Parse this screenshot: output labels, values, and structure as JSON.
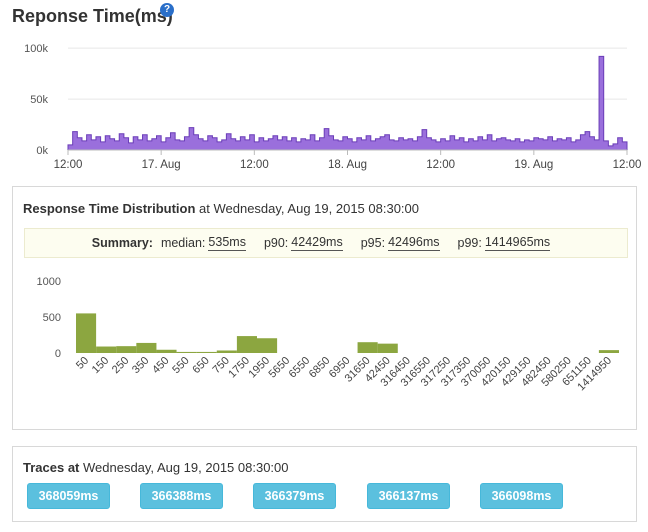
{
  "header": {
    "title": "Reponse Time(ms)",
    "help_icon": "question-circle-icon"
  },
  "colors": {
    "response_area": "#9a6fdc",
    "response_line": "#6a3db8",
    "histogram": "#8ca640",
    "trace_button": "#5bc0de"
  },
  "chart_data": [
    {
      "type": "area",
      "title": "",
      "y_ticks": [
        "100k",
        "50k",
        "0k"
      ],
      "x_ticks": [
        "12:00",
        "17. Aug",
        "12:00",
        "18. Aug",
        "12:00",
        "19. Aug",
        "12:00"
      ],
      "ylim": [
        0,
        110000
      ],
      "x_domain": [
        0,
        72
      ],
      "grid": "horizontal",
      "series": [
        {
          "values": [
            5000,
            18000,
            12000,
            9000,
            15000,
            10000,
            13000,
            8000,
            14000,
            11000,
            9000,
            16000,
            12000,
            7000,
            13000,
            10000,
            15000,
            9000,
            11000,
            14000,
            8000,
            12000,
            17000,
            10000,
            9000,
            13000,
            22000,
            15000,
            11000,
            9000,
            14000,
            12000,
            8000,
            10000,
            16000,
            11000,
            9000,
            13000,
            10000,
            15000,
            8000,
            12000,
            9000,
            11000,
            14000,
            10000,
            13000,
            9000,
            12000,
            8000,
            11000,
            10000,
            15000,
            9000,
            12000,
            21000,
            14000,
            10000,
            9000,
            13000,
            11000,
            8000,
            12000,
            10000,
            14000,
            9000,
            11000,
            13000,
            15000,
            10000,
            9000,
            12000,
            10000,
            11000,
            9000,
            13000,
            20000,
            12000,
            10000,
            8000,
            11000,
            9000,
            14000,
            10000,
            12000,
            8000,
            11000,
            9000,
            13000,
            10000,
            15000,
            9000,
            11000,
            12000,
            10000,
            9000,
            11000,
            8000,
            10000,
            9000,
            12000,
            11000,
            10000,
            13000,
            9000,
            11000,
            10000,
            12000,
            8000,
            10000,
            15000,
            18000,
            13000,
            10000,
            92000,
            9000,
            4000,
            6000,
            12000,
            8000
          ]
        }
      ]
    },
    {
      "type": "bar",
      "title": "",
      "y_ticks": [
        "1000",
        "500",
        "0"
      ],
      "ylim": [
        0,
        1000
      ],
      "categories": [
        "50",
        "150",
        "250",
        "350",
        "450",
        "550",
        "650",
        "750",
        "1750",
        "1950",
        "5650",
        "6550",
        "6850",
        "6950",
        "31650",
        "42450",
        "316450",
        "316550",
        "317250",
        "317350",
        "370050",
        "420150",
        "429150",
        "482450",
        "580250",
        "651150",
        "1414950"
      ],
      "values": [
        550,
        90,
        95,
        140,
        45,
        15,
        15,
        35,
        235,
        205,
        0,
        0,
        0,
        0,
        150,
        130,
        0,
        0,
        0,
        0,
        0,
        0,
        0,
        0,
        0,
        0,
        40
      ]
    }
  ],
  "distribution": {
    "heading": "Response Time Distribution",
    "at_text": " at Wednesday, Aug 19, 2015 08:30:00",
    "summary_label": "Summary:",
    "median_label": "median:",
    "median_value": "535ms",
    "p90_label": "p90:",
    "p90_value": "42429ms",
    "p95_label": "p95:",
    "p95_value": "42496ms",
    "p99_label": "p99:",
    "p99_value": "1414965ms"
  },
  "traces": {
    "heading": "Traces at",
    "at_text": " Wednesday, Aug 19, 2015 08:30:00",
    "buttons": [
      "368059ms",
      "366388ms",
      "366379ms",
      "366137ms",
      "366098ms"
    ]
  }
}
